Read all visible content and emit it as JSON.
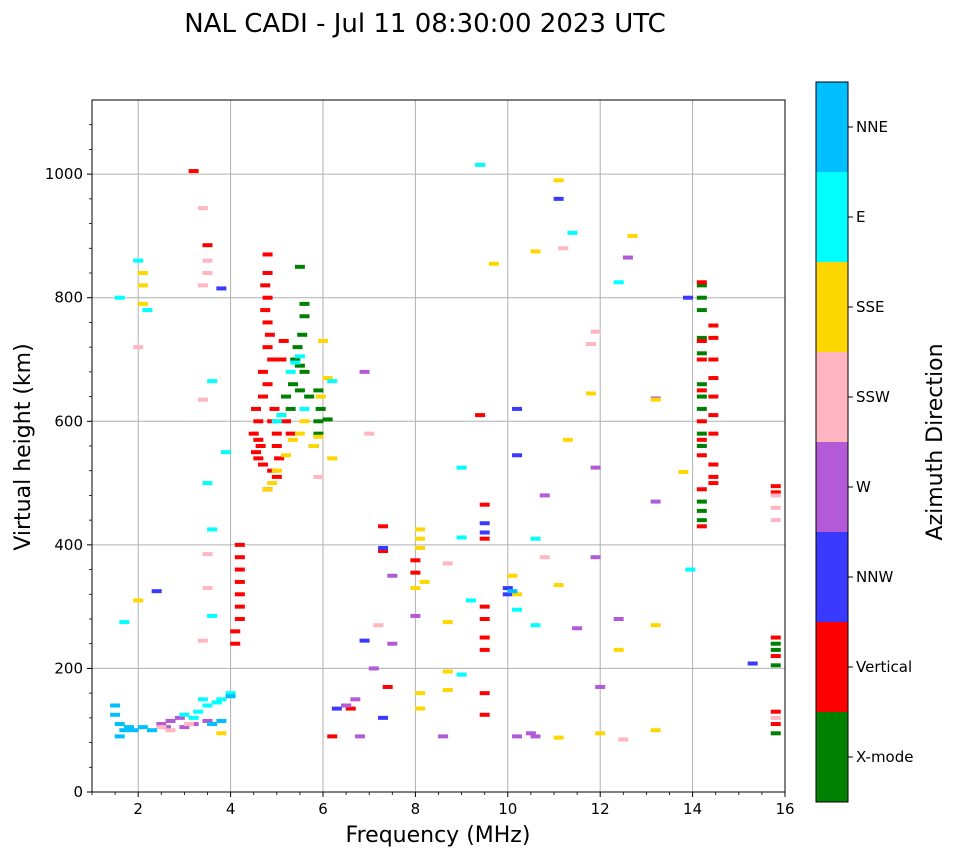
{
  "chart_data": {
    "type": "scatter",
    "title": "NAL CADI - Jul 11 08:30:00 2023 UTC",
    "xlabel": "Frequency (MHz)",
    "ylabel": "Virtual height (km)",
    "xlim": [
      1,
      16
    ],
    "ylim": [
      0,
      1120
    ],
    "xticks": [
      2,
      4,
      6,
      8,
      10,
      12,
      14,
      16
    ],
    "yticks": [
      0,
      200,
      400,
      600,
      800,
      1000
    ],
    "grid": true,
    "colorbar": {
      "label": "Azimuth Direction",
      "categories": [
        {
          "name": "X-mode",
          "color": "#008000"
        },
        {
          "name": "Vertical",
          "color": "#ff0000"
        },
        {
          "name": "NNW",
          "color": "#3a3aff"
        },
        {
          "name": "W",
          "color": "#b35bd6"
        },
        {
          "name": "SSW",
          "color": "#ffb6c1"
        },
        {
          "name": "SSE",
          "color": "#ffd700"
        },
        {
          "name": "E",
          "color": "#00ffff"
        },
        {
          "name": "NNE",
          "color": "#00bfff"
        }
      ]
    },
    "series": [
      {
        "name": "X-mode",
        "points": [
          [
            5.5,
            850
          ],
          [
            5.6,
            790
          ],
          [
            5.6,
            770
          ],
          [
            5.55,
            740
          ],
          [
            5.45,
            720
          ],
          [
            5.4,
            700
          ],
          [
            5.5,
            690
          ],
          [
            5.6,
            680
          ],
          [
            5.35,
            660
          ],
          [
            5.5,
            650
          ],
          [
            5.7,
            640
          ],
          [
            5.9,
            650
          ],
          [
            5.95,
            620
          ],
          [
            5.9,
            600
          ],
          [
            5.9,
            580
          ],
          [
            5.8,
            560
          ],
          [
            5.3,
            620
          ],
          [
            5.2,
            640
          ],
          [
            5.1,
            610
          ],
          [
            14.2,
            820
          ],
          [
            14.2,
            800
          ],
          [
            14.2,
            780
          ],
          [
            14.2,
            735
          ],
          [
            14.2,
            710
          ],
          [
            14.2,
            660
          ],
          [
            14.2,
            640
          ],
          [
            14.2,
            620
          ],
          [
            14.2,
            580
          ],
          [
            14.2,
            560
          ],
          [
            14.2,
            470
          ],
          [
            14.2,
            455
          ],
          [
            14.2,
            440
          ],
          [
            15.8,
            240
          ],
          [
            15.8,
            230
          ],
          [
            15.8,
            205
          ],
          [
            15.8,
            95
          ],
          [
            6.1,
            603
          ]
        ]
      },
      {
        "name": "Vertical",
        "points": [
          [
            4.55,
            550
          ],
          [
            4.6,
            570
          ],
          [
            4.5,
            580
          ],
          [
            4.6,
            600
          ],
          [
            4.55,
            620
          ],
          [
            4.7,
            640
          ],
          [
            4.8,
            660
          ],
          [
            4.7,
            680
          ],
          [
            4.9,
            700
          ],
          [
            4.8,
            720
          ],
          [
            4.85,
            740
          ],
          [
            4.8,
            760
          ],
          [
            4.75,
            780
          ],
          [
            4.8,
            800
          ],
          [
            4.75,
            820
          ],
          [
            4.8,
            840
          ],
          [
            4.8,
            870
          ],
          [
            4.9,
            600
          ],
          [
            4.95,
            620
          ],
          [
            5.0,
            580
          ],
          [
            5.0,
            560
          ],
          [
            5.05,
            540
          ],
          [
            4.9,
            520
          ],
          [
            5.0,
            510
          ],
          [
            4.8,
            490
          ],
          [
            5.2,
            600
          ],
          [
            5.3,
            580
          ],
          [
            5.1,
            700
          ],
          [
            5.15,
            730
          ],
          [
            4.65,
            560
          ],
          [
            4.6,
            540
          ],
          [
            4.7,
            530
          ],
          [
            4.2,
            400
          ],
          [
            4.2,
            380
          ],
          [
            4.2,
            360
          ],
          [
            4.2,
            340
          ],
          [
            4.2,
            320
          ],
          [
            4.2,
            300
          ],
          [
            4.2,
            280
          ],
          [
            4.1,
            260
          ],
          [
            4.1,
            240
          ],
          [
            3.5,
            885
          ],
          [
            3.2,
            1005
          ],
          [
            14.2,
            825
          ],
          [
            14.2,
            730
          ],
          [
            14.2,
            700
          ],
          [
            14.2,
            650
          ],
          [
            14.2,
            600
          ],
          [
            14.2,
            570
          ],
          [
            14.2,
            545
          ],
          [
            14.2,
            490
          ],
          [
            14.2,
            430
          ],
          [
            14.45,
            755
          ],
          [
            14.45,
            735
          ],
          [
            14.45,
            700
          ],
          [
            14.45,
            670
          ],
          [
            14.45,
            640
          ],
          [
            14.45,
            610
          ],
          [
            14.45,
            580
          ],
          [
            14.45,
            530
          ],
          [
            14.45,
            510
          ],
          [
            14.45,
            500
          ],
          [
            15.8,
            495
          ],
          [
            15.8,
            485
          ],
          [
            15.8,
            250
          ],
          [
            15.8,
            220
          ],
          [
            15.8,
            130
          ],
          [
            15.8,
            110
          ],
          [
            9.5,
            465
          ],
          [
            9.5,
            410
          ],
          [
            9.5,
            300
          ],
          [
            9.5,
            280
          ],
          [
            9.5,
            250
          ],
          [
            9.5,
            230
          ],
          [
            9.5,
            160
          ],
          [
            9.5,
            125
          ],
          [
            9.4,
            610
          ],
          [
            8.0,
            375
          ],
          [
            8.0,
            355
          ],
          [
            7.3,
            430
          ],
          [
            7.3,
            390
          ],
          [
            7.4,
            170
          ],
          [
            6.2,
            90
          ],
          [
            6.6,
            135
          ]
        ]
      },
      {
        "name": "NNW",
        "points": [
          [
            2.4,
            325
          ],
          [
            3.8,
            815
          ],
          [
            9.5,
            435
          ],
          [
            9.5,
            420
          ],
          [
            10.2,
            620
          ],
          [
            10.2,
            545
          ],
          [
            10.0,
            330
          ],
          [
            10.0,
            320
          ],
          [
            11.1,
            960
          ],
          [
            7.3,
            395
          ],
          [
            6.9,
            245
          ],
          [
            7.3,
            120
          ],
          [
            15.3,
            208
          ],
          [
            13.9,
            800
          ],
          [
            6.3,
            135
          ],
          [
            6.5,
            140
          ]
        ]
      },
      {
        "name": "W",
        "points": [
          [
            2.5,
            110
          ],
          [
            2.6,
            105
          ],
          [
            2.7,
            115
          ],
          [
            2.9,
            120
          ],
          [
            3.0,
            105
          ],
          [
            3.2,
            110
          ],
          [
            3.5,
            115
          ],
          [
            6.5,
            140
          ],
          [
            6.7,
            150
          ],
          [
            6.9,
            680
          ],
          [
            7.5,
            350
          ],
          [
            8.0,
            285
          ],
          [
            10.8,
            480
          ],
          [
            11.9,
            525
          ],
          [
            11.9,
            380
          ],
          [
            12.4,
            280
          ],
          [
            12.6,
            865
          ],
          [
            13.2,
            470
          ],
          [
            13.2,
            637
          ],
          [
            12.0,
            170
          ],
          [
            10.5,
            95
          ],
          [
            11.5,
            265
          ],
          [
            10.2,
            90
          ],
          [
            10.6,
            90
          ],
          [
            7.5,
            240
          ],
          [
            7.1,
            200
          ],
          [
            6.8,
            90
          ],
          [
            8.6,
            90
          ]
        ]
      },
      {
        "name": "SSW",
        "points": [
          [
            3.4,
            945
          ],
          [
            3.5,
            860
          ],
          [
            3.5,
            840
          ],
          [
            3.4,
            820
          ],
          [
            3.4,
            635
          ],
          [
            3.5,
            385
          ],
          [
            3.5,
            330
          ],
          [
            3.4,
            245
          ],
          [
            2.0,
            720
          ],
          [
            2.5,
            105
          ],
          [
            2.7,
            100
          ],
          [
            3.1,
            110
          ],
          [
            5.9,
            510
          ],
          [
            7.2,
            270
          ],
          [
            10.8,
            380
          ],
          [
            11.2,
            880
          ],
          [
            11.9,
            745
          ],
          [
            11.8,
            725
          ],
          [
            12.5,
            85
          ],
          [
            15.8,
            480
          ],
          [
            15.8,
            460
          ],
          [
            15.8,
            440
          ],
          [
            15.8,
            120
          ],
          [
            8.7,
            370
          ],
          [
            7.0,
            580
          ],
          [
            9.0,
            525
          ]
        ]
      },
      {
        "name": "SSE",
        "points": [
          [
            2.1,
            840
          ],
          [
            2.1,
            820
          ],
          [
            2.1,
            790
          ],
          [
            2.0,
            310
          ],
          [
            3.8,
            95
          ],
          [
            4.8,
            490
          ],
          [
            4.9,
            500
          ],
          [
            5.0,
            520
          ],
          [
            5.2,
            545
          ],
          [
            5.35,
            570
          ],
          [
            5.5,
            580
          ],
          [
            5.8,
            560
          ],
          [
            5.9,
            575
          ],
          [
            5.95,
            640
          ],
          [
            6.1,
            670
          ],
          [
            6.2,
            540
          ],
          [
            6.0,
            730
          ],
          [
            5.6,
            600
          ],
          [
            8.1,
            425
          ],
          [
            8.1,
            410
          ],
          [
            8.1,
            395
          ],
          [
            8.2,
            340
          ],
          [
            8.0,
            330
          ],
          [
            8.1,
            160
          ],
          [
            8.1,
            135
          ],
          [
            8.7,
            275
          ],
          [
            8.7,
            195
          ],
          [
            8.7,
            165
          ],
          [
            10.1,
            350
          ],
          [
            10.2,
            320
          ],
          [
            10.6,
            875
          ],
          [
            11.1,
            990
          ],
          [
            11.3,
            570
          ],
          [
            11.8,
            645
          ],
          [
            12.4,
            230
          ],
          [
            12.7,
            900
          ],
          [
            13.2,
            635
          ],
          [
            13.2,
            270
          ],
          [
            13.8,
            518
          ],
          [
            9.7,
            855
          ],
          [
            11.1,
            335
          ],
          [
            11.1,
            88
          ],
          [
            12.0,
            95
          ],
          [
            13.2,
            100
          ]
        ]
      },
      {
        "name": "E",
        "points": [
          [
            3.3,
            130
          ],
          [
            3.5,
            140
          ],
          [
            3.7,
            145
          ],
          [
            3.8,
            150
          ],
          [
            4.0,
            160
          ],
          [
            3.2,
            120
          ],
          [
            3.0,
            125
          ],
          [
            3.4,
            150
          ],
          [
            3.6,
            285
          ],
          [
            3.6,
            425
          ],
          [
            3.5,
            500
          ],
          [
            3.6,
            665
          ],
          [
            3.9,
            550
          ],
          [
            5.0,
            600
          ],
          [
            5.1,
            610
          ],
          [
            5.3,
            680
          ],
          [
            5.4,
            695
          ],
          [
            5.5,
            705
          ],
          [
            5.6,
            620
          ],
          [
            6.2,
            665
          ],
          [
            9.4,
            1015
          ],
          [
            9.0,
            525
          ],
          [
            9.2,
            310
          ],
          [
            9.0,
            190
          ],
          [
            10.6,
            410
          ],
          [
            10.6,
            270
          ],
          [
            10.2,
            295
          ],
          [
            11.4,
            905
          ],
          [
            12.4,
            825
          ],
          [
            13.95,
            360
          ],
          [
            2.2,
            780
          ],
          [
            2.0,
            860
          ],
          [
            1.6,
            800
          ],
          [
            1.7,
            275
          ],
          [
            9.0,
            412
          ]
        ]
      },
      {
        "name": "NNE",
        "points": [
          [
            1.5,
            140
          ],
          [
            1.5,
            125
          ],
          [
            1.6,
            110
          ],
          [
            1.7,
            100
          ],
          [
            1.6,
            90
          ],
          [
            1.8,
            105
          ],
          [
            1.9,
            100
          ],
          [
            2.1,
            105
          ],
          [
            2.3,
            100
          ],
          [
            3.6,
            110
          ],
          [
            4.0,
            155
          ],
          [
            3.8,
            115
          ],
          [
            10.1,
            325
          ]
        ]
      }
    ]
  }
}
